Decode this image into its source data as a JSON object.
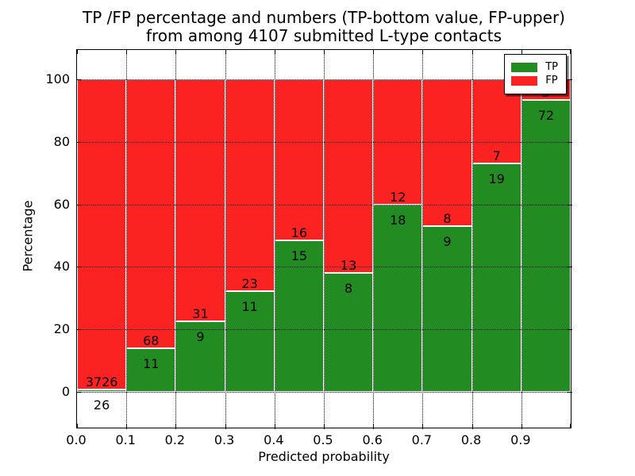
{
  "title": {
    "line1": "TP /FP percentage and numbers (TP-bottom value, FP-upper)",
    "line2": "from among 4107 submitted L-type contacts"
  },
  "axes": {
    "xlabel": "Predicted probability",
    "ylabel": "Percentage",
    "x_tick_labels": [
      "0.0",
      "0.1",
      "0.2",
      "0.3",
      "0.4",
      "0.5",
      "0.6",
      "0.7",
      "0.8",
      "0.9"
    ],
    "y_tick_labels": [
      "0",
      "20",
      "40",
      "60",
      "80",
      "100"
    ],
    "y_tick_values": [
      0,
      20,
      40,
      60,
      80,
      100
    ]
  },
  "legend": [
    {
      "label": "TP",
      "color": "#228b22"
    },
    {
      "label": "FP",
      "color": "#fb2222"
    }
  ],
  "colors": {
    "tp": "#228b22",
    "fp": "#fb2222",
    "grid": "#000000",
    "background": "#ffffff"
  },
  "chart_data": {
    "type": "bar",
    "stacked": true,
    "normalized": "each bar scaled to 100%",
    "title": "TP /FP percentage and numbers (TP-bottom value, FP-upper) from among 4107 submitted L-type contacts",
    "xlabel": "Predicted probability",
    "ylabel": "Percentage",
    "x_bins": [
      "0.0-0.1",
      "0.1-0.2",
      "0.2-0.3",
      "0.3-0.4",
      "0.4-0.5",
      "0.5-0.6",
      "0.6-0.7",
      "0.7-0.8",
      "0.8-0.9",
      "0.9-1.0"
    ],
    "series": [
      {
        "name": "TP",
        "position": "bottom",
        "color": "#228b22",
        "counts": [
          26,
          11,
          9,
          11,
          15,
          8,
          18,
          9,
          19,
          72
        ]
      },
      {
        "name": "FP",
        "position": "top",
        "color": "#fb2222",
        "counts": [
          3726,
          68,
          31,
          23,
          16,
          13,
          12,
          8,
          7,
          5
        ]
      }
    ],
    "tp_percent": [
      0.69,
      13.92,
      22.5,
      32.35,
      48.39,
      38.1,
      60.0,
      52.94,
      73.08,
      93.51
    ],
    "total_contacts": 4107,
    "ylim": [
      0,
      100
    ],
    "grid": "dotted, both axes, drawn over bars",
    "legend_position": "upper right"
  }
}
